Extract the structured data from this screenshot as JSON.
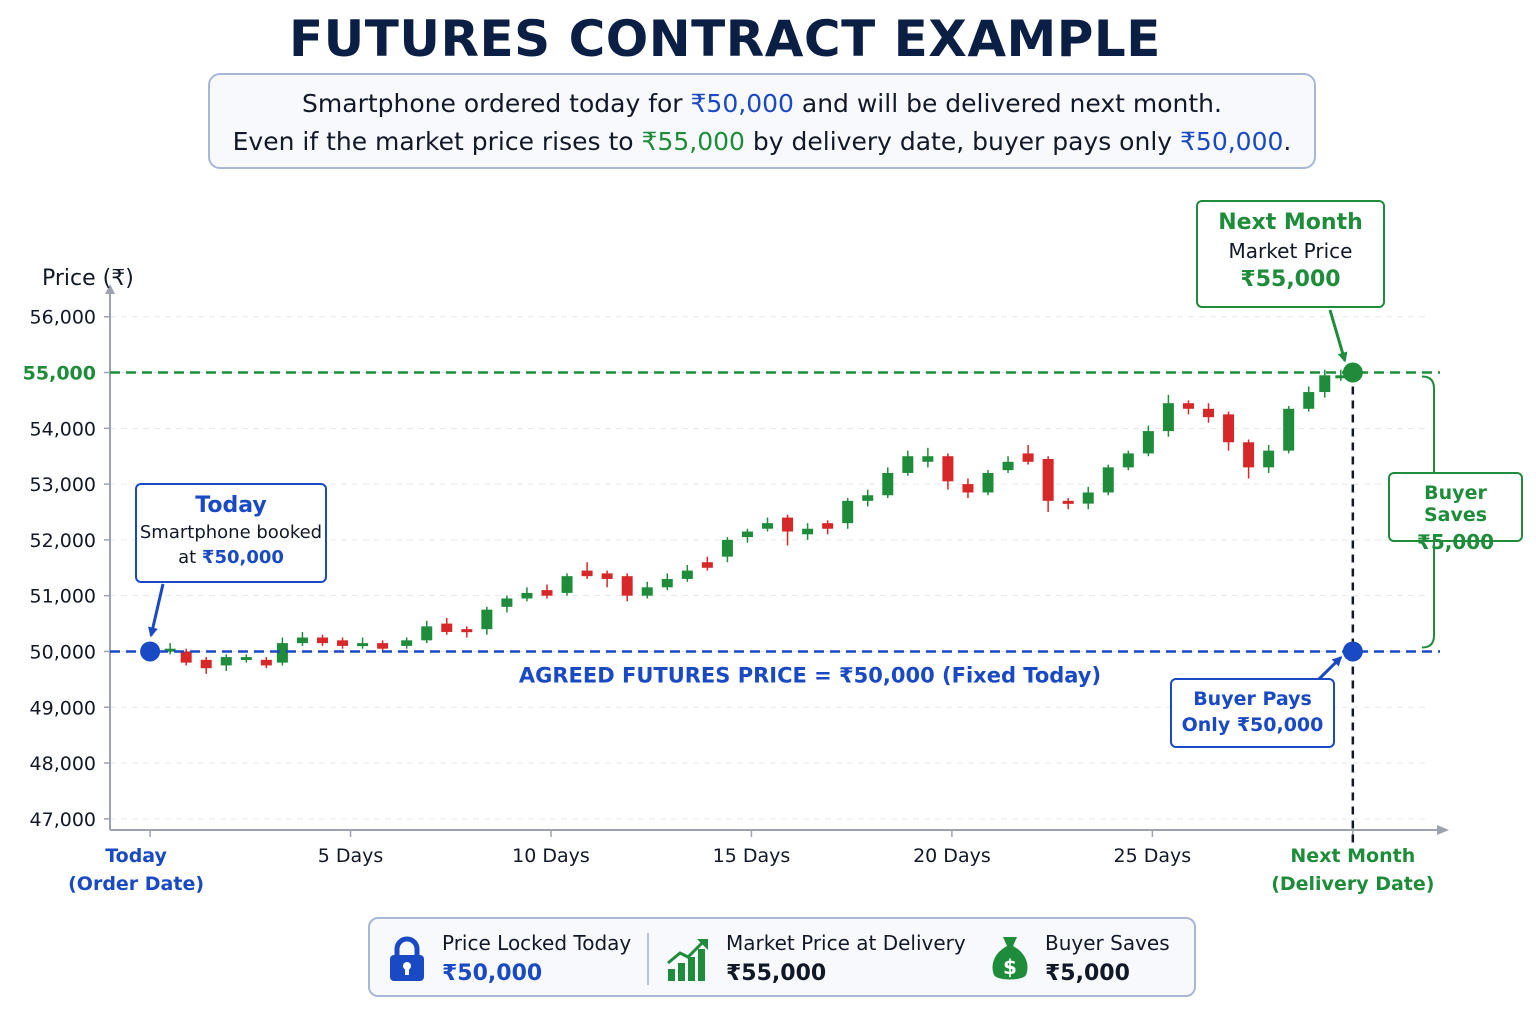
{
  "title": "FUTURES CONTRACT EXAMPLE",
  "intro": {
    "line1_a": "Smartphone ordered today for",
    "line1_price": "₹50,000",
    "line1_b": "and will be delivered next month.",
    "line2_a": "Even if the market price rises to",
    "line2_price": "₹55,000",
    "line2_b": "by delivery date, buyer pays only",
    "line2_price2": "₹50,000",
    "line2_c": "."
  },
  "colors": {
    "blue": "#1a49c4",
    "green": "#1e8c3a",
    "candle_up": "#1e8c3a",
    "candle_down": "#d62828",
    "grid": "#e5e7eb",
    "axis": "#9ca3af"
  },
  "chart_data": {
    "type": "candlestick",
    "ylabel": "Price (₹)",
    "ylim": [
      46800,
      56300
    ],
    "yticks": [
      47000,
      48000,
      49000,
      50000,
      51000,
      52000,
      53000,
      54000,
      55000,
      56000
    ],
    "ytick_labels": [
      "47,000",
      "48,000",
      "49,000",
      "50,000",
      "51,000",
      "52,000",
      "53,000",
      "54,000",
      "55,000",
      "56,000"
    ],
    "xlim": [
      -1,
      31.8
    ],
    "xticks": [
      {
        "day": 0,
        "line1": "Today",
        "line2": "(Order Date)",
        "color": "blue"
      },
      {
        "day": 5,
        "line1": "5 Days",
        "line2": "",
        "color": "dark"
      },
      {
        "day": 10,
        "line1": "10 Days",
        "line2": "",
        "color": "dark"
      },
      {
        "day": 15,
        "line1": "15 Days",
        "line2": "",
        "color": "dark"
      },
      {
        "day": 20,
        "line1": "20 Days",
        "line2": "",
        "color": "dark"
      },
      {
        "day": 25,
        "line1": "25 Days",
        "line2": "",
        "color": "dark"
      },
      {
        "day": 30,
        "line1": "Next Month",
        "line2": "(Delivery Date)",
        "color": "green"
      }
    ],
    "agreed_price": 50000,
    "agreed_label": "AGREED FUTURES PRICE = ₹50,000 (Fixed Today)",
    "market_price": 55000,
    "today_point": {
      "day": 0,
      "price": 50000
    },
    "delivery_point": {
      "day": 30,
      "price": 55000
    },
    "pay_point": {
      "day": 30,
      "price": 50000
    },
    "candles": [
      {
        "x": 0.5,
        "o": 50000,
        "c": 50050,
        "h": 50150,
        "l": 49950
      },
      {
        "x": 0.9,
        "o": 50000,
        "c": 49800,
        "h": 50050,
        "l": 49750
      },
      {
        "x": 1.4,
        "o": 49850,
        "c": 49700,
        "h": 49900,
        "l": 49600
      },
      {
        "x": 1.9,
        "o": 49750,
        "c": 49900,
        "h": 49950,
        "l": 49650
      },
      {
        "x": 2.4,
        "o": 49850,
        "c": 49900,
        "h": 49950,
        "l": 49800
      },
      {
        "x": 2.9,
        "o": 49850,
        "c": 49750,
        "h": 49900,
        "l": 49700
      },
      {
        "x": 3.3,
        "o": 49800,
        "c": 50150,
        "h": 50250,
        "l": 49750
      },
      {
        "x": 3.8,
        "o": 50150,
        "c": 50250,
        "h": 50350,
        "l": 50100
      },
      {
        "x": 4.3,
        "o": 50250,
        "c": 50150,
        "h": 50300,
        "l": 50100
      },
      {
        "x": 4.8,
        "o": 50200,
        "c": 50100,
        "h": 50250,
        "l": 50050
      },
      {
        "x": 5.3,
        "o": 50100,
        "c": 50150,
        "h": 50250,
        "l": 50050
      },
      {
        "x": 5.8,
        "o": 50150,
        "c": 50050,
        "h": 50200,
        "l": 50000
      },
      {
        "x": 6.4,
        "o": 50100,
        "c": 50200,
        "h": 50250,
        "l": 50050
      },
      {
        "x": 6.9,
        "o": 50200,
        "c": 50450,
        "h": 50550,
        "l": 50150
      },
      {
        "x": 7.4,
        "o": 50500,
        "c": 50350,
        "h": 50600,
        "l": 50300
      },
      {
        "x": 7.9,
        "o": 50400,
        "c": 50350,
        "h": 50450,
        "l": 50250
      },
      {
        "x": 8.4,
        "o": 50400,
        "c": 50750,
        "h": 50800,
        "l": 50300
      },
      {
        "x": 8.9,
        "o": 50800,
        "c": 50950,
        "h": 51000,
        "l": 50700
      },
      {
        "x": 9.4,
        "o": 50950,
        "c": 51050,
        "h": 51150,
        "l": 50900
      },
      {
        "x": 9.9,
        "o": 51100,
        "c": 51000,
        "h": 51200,
        "l": 50950
      },
      {
        "x": 10.4,
        "o": 51050,
        "c": 51350,
        "h": 51400,
        "l": 51000
      },
      {
        "x": 10.9,
        "o": 51450,
        "c": 51350,
        "h": 51600,
        "l": 51300
      },
      {
        "x": 11.4,
        "o": 51400,
        "c": 51300,
        "h": 51450,
        "l": 51150
      },
      {
        "x": 11.9,
        "o": 51350,
        "c": 51000,
        "h": 51400,
        "l": 50900
      },
      {
        "x": 12.4,
        "o": 51000,
        "c": 51150,
        "h": 51250,
        "l": 50950
      },
      {
        "x": 12.9,
        "o": 51150,
        "c": 51300,
        "h": 51400,
        "l": 51100
      },
      {
        "x": 13.4,
        "o": 51300,
        "c": 51450,
        "h": 51550,
        "l": 51250
      },
      {
        "x": 13.9,
        "o": 51600,
        "c": 51500,
        "h": 51700,
        "l": 51450
      },
      {
        "x": 14.4,
        "o": 51700,
        "c": 52000,
        "h": 52050,
        "l": 51600
      },
      {
        "x": 14.9,
        "o": 52050,
        "c": 52150,
        "h": 52200,
        "l": 51950
      },
      {
        "x": 15.4,
        "o": 52200,
        "c": 52300,
        "h": 52400,
        "l": 52150
      },
      {
        "x": 15.9,
        "o": 52400,
        "c": 52150,
        "h": 52450,
        "l": 51900
      },
      {
        "x": 16.4,
        "o": 52100,
        "c": 52200,
        "h": 52300,
        "l": 52000
      },
      {
        "x": 16.9,
        "o": 52300,
        "c": 52200,
        "h": 52350,
        "l": 52100
      },
      {
        "x": 17.4,
        "o": 52300,
        "c": 52700,
        "h": 52750,
        "l": 52200
      },
      {
        "x": 17.9,
        "o": 52700,
        "c": 52800,
        "h": 52900,
        "l": 52600
      },
      {
        "x": 18.4,
        "o": 52800,
        "c": 53200,
        "h": 53300,
        "l": 52750
      },
      {
        "x": 18.9,
        "o": 53200,
        "c": 53500,
        "h": 53600,
        "l": 53150
      },
      {
        "x": 19.4,
        "o": 53400,
        "c": 53500,
        "h": 53650,
        "l": 53300
      },
      {
        "x": 19.9,
        "o": 53500,
        "c": 53050,
        "h": 53550,
        "l": 52900
      },
      {
        "x": 20.4,
        "o": 53000,
        "c": 52850,
        "h": 53100,
        "l": 52750
      },
      {
        "x": 20.9,
        "o": 52850,
        "c": 53200,
        "h": 53250,
        "l": 52800
      },
      {
        "x": 21.4,
        "o": 53250,
        "c": 53400,
        "h": 53500,
        "l": 53200
      },
      {
        "x": 21.9,
        "o": 53550,
        "c": 53400,
        "h": 53700,
        "l": 53350
      },
      {
        "x": 22.4,
        "o": 53450,
        "c": 52700,
        "h": 53500,
        "l": 52500
      },
      {
        "x": 22.9,
        "o": 52700,
        "c": 52650,
        "h": 52750,
        "l": 52550
      },
      {
        "x": 23.4,
        "o": 52650,
        "c": 52850,
        "h": 52950,
        "l": 52550
      },
      {
        "x": 23.9,
        "o": 52850,
        "c": 53300,
        "h": 53350,
        "l": 52800
      },
      {
        "x": 24.4,
        "o": 53300,
        "c": 53550,
        "h": 53600,
        "l": 53250
      },
      {
        "x": 24.9,
        "o": 53550,
        "c": 53950,
        "h": 54050,
        "l": 53500
      },
      {
        "x": 25.4,
        "o": 53950,
        "c": 54450,
        "h": 54600,
        "l": 53850
      },
      {
        "x": 25.9,
        "o": 54450,
        "c": 54350,
        "h": 54500,
        "l": 54250
      },
      {
        "x": 26.4,
        "o": 54350,
        "c": 54200,
        "h": 54450,
        "l": 54100
      },
      {
        "x": 26.9,
        "o": 54250,
        "c": 53750,
        "h": 54300,
        "l": 53600
      },
      {
        "x": 27.4,
        "o": 53750,
        "c": 53300,
        "h": 53800,
        "l": 53100
      },
      {
        "x": 27.9,
        "o": 53300,
        "c": 53600,
        "h": 53700,
        "l": 53200
      },
      {
        "x": 28.4,
        "o": 53600,
        "c": 54350,
        "h": 54400,
        "l": 53550
      },
      {
        "x": 28.9,
        "o": 54350,
        "c": 54650,
        "h": 54750,
        "l": 54300
      },
      {
        "x": 29.3,
        "o": 54650,
        "c": 54950,
        "h": 55050,
        "l": 54550
      },
      {
        "x": 29.7,
        "o": 54950,
        "c": 54950,
        "h": 55050,
        "l": 54850
      }
    ]
  },
  "callouts": {
    "next_month": {
      "title": "Next Month",
      "line2": "Market Price",
      "value": "₹55,000"
    },
    "today": {
      "title": "Today",
      "line2": "Smartphone booked",
      "line3_a": "at",
      "line3_value": "₹50,000"
    },
    "buyer_saves": {
      "line1": "Buyer Saves",
      "line2": "₹5,000"
    },
    "buyer_pays": {
      "line1": "Buyer Pays",
      "line2": "Only ₹50,000"
    }
  },
  "summary": {
    "locked": {
      "icon": "lock-icon",
      "label": "Price Locked Today",
      "value": "₹50,000"
    },
    "market": {
      "icon": "growth-chart-icon",
      "label": "Market Price at Delivery",
      "value": "₹55,000"
    },
    "saves": {
      "icon": "money-bag-icon",
      "label": "Buyer Saves",
      "value": "₹5,000"
    }
  }
}
